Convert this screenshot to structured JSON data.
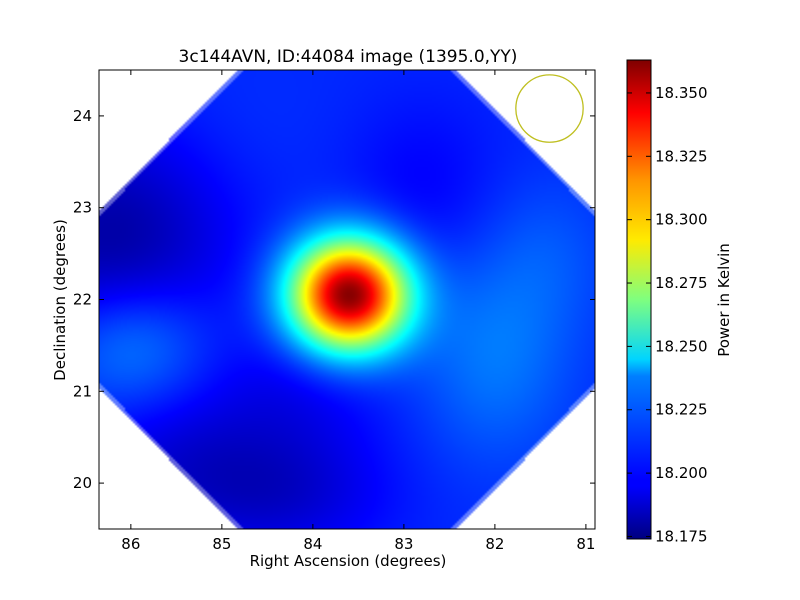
{
  "chart_data": {
    "type": "heatmap",
    "title": "3c144AVN, ID:44084 image (1395.0,YY)",
    "xlabel": "Right Ascension (degrees)",
    "ylabel": "Declination (degrees)",
    "xlim": [
      86.35,
      80.9
    ],
    "ylim": [
      19.5,
      24.5
    ],
    "x_ticks": [
      86,
      85,
      84,
      83,
      82,
      81
    ],
    "y_ticks": [
      20,
      21,
      22,
      23,
      24
    ],
    "grid": false,
    "colormap": "jet",
    "colorbar": {
      "label": "Power in Kelvin",
      "min": 18.174,
      "max": 18.363,
      "ticks": [
        "18.175",
        "18.200",
        "18.225",
        "18.250",
        "18.275",
        "18.300",
        "18.325",
        "18.350"
      ]
    },
    "background_level": 18.205,
    "features": [
      {
        "ra": 83.6,
        "dec": 22.05,
        "peak": 18.363,
        "sigma_ra": 0.45,
        "sigma_dec": 0.42
      },
      {
        "ra": 86.2,
        "dec": 22.6,
        "peak": 18.18,
        "sigma_ra": 0.9,
        "sigma_dec": 0.9
      },
      {
        "ra": 86.0,
        "dec": 21.5,
        "peak": 18.228,
        "sigma_ra": 0.6,
        "sigma_dec": 0.5
      },
      {
        "ra": 85.5,
        "dec": 20.2,
        "peak": 18.192,
        "sigma_ra": 0.8,
        "sigma_dec": 0.6
      },
      {
        "ra": 84.3,
        "dec": 19.9,
        "peak": 18.19,
        "sigma_ra": 0.8,
        "sigma_dec": 0.5
      },
      {
        "ra": 82.8,
        "dec": 23.2,
        "peak": 18.197,
        "sigma_ra": 0.6,
        "sigma_dec": 0.7
      },
      {
        "ra": 82.0,
        "dec": 21.4,
        "peak": 18.22,
        "sigma_ra": 0.6,
        "sigma_dec": 0.8
      },
      {
        "ra": 81.4,
        "dec": 22.5,
        "peak": 18.212,
        "sigma_ra": 0.5,
        "sigma_dec": 0.6
      },
      {
        "ra": 84.2,
        "dec": 21.0,
        "peak": 18.196,
        "sigma_ra": 0.7,
        "sigma_dec": 0.5
      },
      {
        "ra": 85.0,
        "dec": 23.8,
        "peak": 18.207,
        "sigma_ra": 0.8,
        "sigma_dec": 0.6
      }
    ],
    "beam_circle": {
      "ra": 81.4,
      "dec": 24.08,
      "radius_deg": 0.37,
      "color": "#bfbf20"
    },
    "footprint_corner_cut": 1.55
  }
}
